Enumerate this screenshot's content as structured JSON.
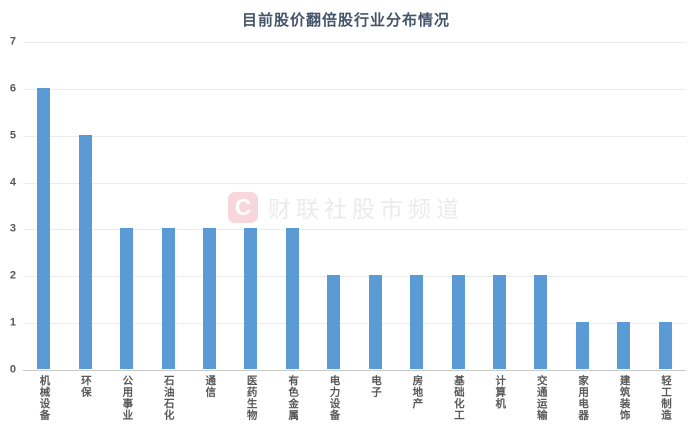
{
  "chart_data": {
    "type": "bar",
    "title": "目前股价翻倍股行业分布情况",
    "categories": [
      "机械设备",
      "环保",
      "公用事业",
      "石油石化",
      "通信",
      "医药生物",
      "有色金属",
      "电力设备",
      "电子",
      "房地产",
      "基础化工",
      "计算机",
      "交通运输",
      "家用电器",
      "建筑装饰",
      "轻工制造"
    ],
    "values": [
      6,
      5,
      3,
      3,
      3,
      3,
      3,
      2,
      2,
      2,
      2,
      2,
      2,
      1,
      1,
      1
    ],
    "xlabel": "",
    "ylabel": "",
    "ylim": [
      0,
      7
    ],
    "yticks": [
      0,
      1,
      2,
      3,
      4,
      5,
      6,
      7
    ],
    "grid": "horizontal",
    "legend_position": "none",
    "bar_color": "#5B9BD5"
  },
  "watermark": {
    "logo_letter": "C",
    "text": "财联社股市频道"
  },
  "colors": {
    "background": "#FFFFFF",
    "bar": "#5B9BD5",
    "title_text": "#44546A",
    "axis_label_text": "#595959",
    "gridline": "#ECECEC",
    "axis_line": "#C9C9C9",
    "watermark_logo_bg": "#F8D7DC",
    "watermark_logo_letter": "#FFFFFF",
    "watermark_text": "#EBEBEB"
  }
}
